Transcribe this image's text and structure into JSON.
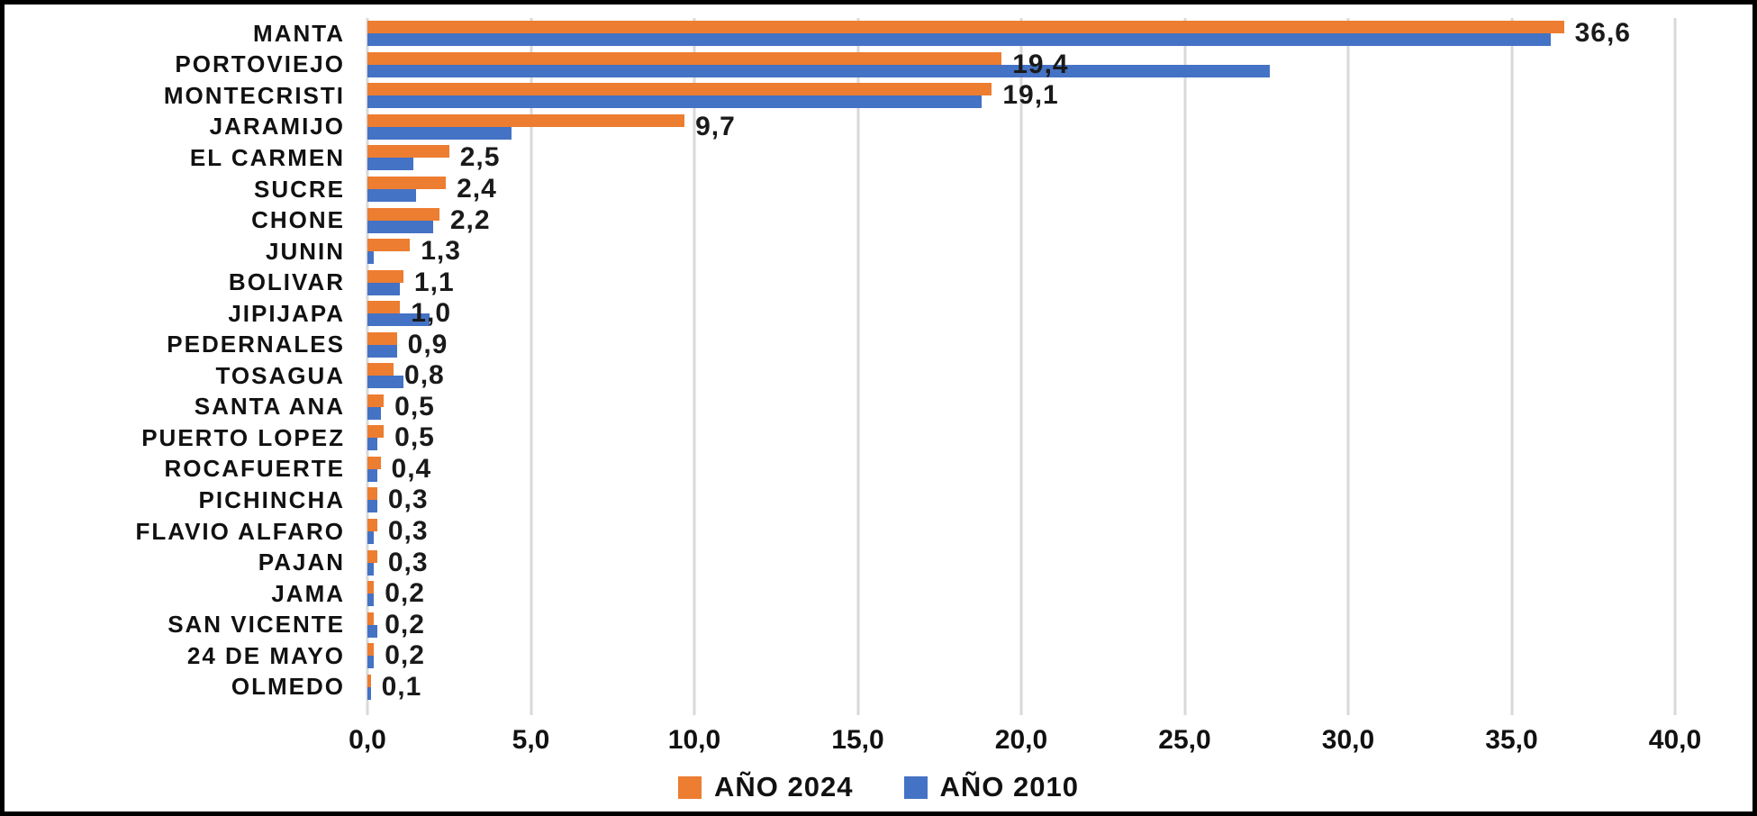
{
  "chart_data": {
    "type": "bar",
    "orientation": "horizontal",
    "categories": [
      "MANTA",
      "PORTOVIEJO",
      "MONTECRISTI",
      "JARAMIJO",
      "EL CARMEN",
      "SUCRE",
      "CHONE",
      "JUNIN",
      "BOLIVAR",
      "JIPIJAPA",
      "PEDERNALES",
      "TOSAGUA",
      "SANTA ANA",
      "PUERTO LOPEZ",
      "ROCAFUERTE",
      "PICHINCHA",
      "FLAVIO ALFARO",
      "PAJAN",
      "JAMA",
      "SAN VICENTE",
      "24 DE MAYO",
      "OLMEDO"
    ],
    "series": [
      {
        "name": "AÑO 2024",
        "color": "#ED7D31",
        "values": [
          36.6,
          19.4,
          19.1,
          9.7,
          2.5,
          2.4,
          2.2,
          1.3,
          1.1,
          1.0,
          0.9,
          0.8,
          0.5,
          0.5,
          0.4,
          0.3,
          0.3,
          0.3,
          0.2,
          0.2,
          0.2,
          0.1
        ],
        "data_labels": [
          "36,6",
          "19,4",
          "19,1",
          "9,7",
          "2,5",
          "2,4",
          "2,2",
          "1,3",
          "1,1",
          "1,0",
          "0,9",
          "0,8",
          "0,5",
          "0,5",
          "0,4",
          "0,3",
          "0,3",
          "0,3",
          "0,2",
          "0,2",
          "0,2",
          "0,1"
        ]
      },
      {
        "name": "AÑO 2010",
        "color": "#4472C4",
        "values": [
          36.2,
          27.6,
          18.8,
          4.4,
          1.4,
          1.5,
          2.0,
          0.2,
          1.0,
          1.9,
          0.9,
          1.1,
          0.4,
          0.3,
          0.3,
          0.3,
          0.2,
          0.2,
          0.2,
          0.3,
          0.2,
          0.1
        ]
      }
    ],
    "xlim": [
      0,
      40
    ],
    "x_ticks": {
      "values": [
        0,
        5,
        10,
        15,
        20,
        25,
        30,
        35,
        40
      ],
      "labels": [
        "0,0",
        "5,0",
        "10,0",
        "15,0",
        "20,0",
        "25,0",
        "30,0",
        "35,0",
        "40,0"
      ]
    },
    "grid": true,
    "legend_position": "bottom",
    "legend_items": [
      {
        "label": "AÑO 2024",
        "color": "#ED7D31"
      },
      {
        "label": "AÑO 2010",
        "color": "#4472C4"
      }
    ],
    "colors": {
      "gridline": "#D9D9D9",
      "background": "#FFFFFF",
      "frame_border": "#000000",
      "text": "#111111"
    }
  }
}
